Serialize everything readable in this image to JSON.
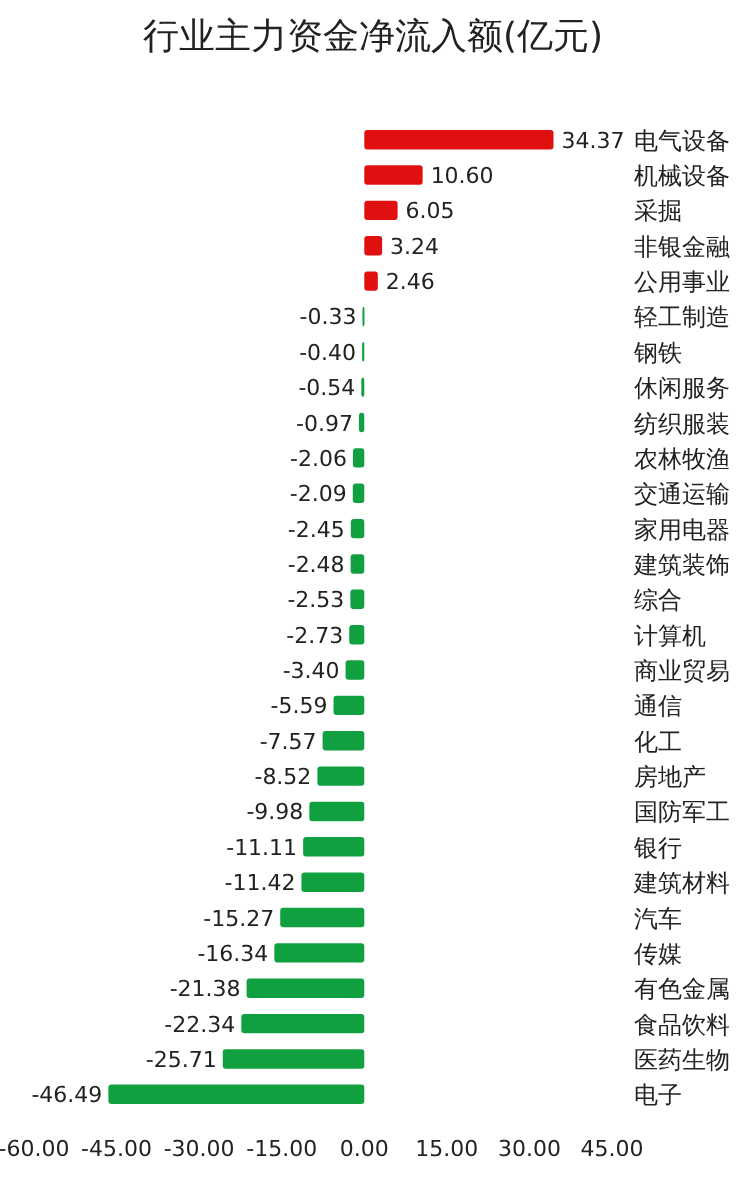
{
  "chart_data": {
    "type": "bar",
    "orientation": "horizontal",
    "title": "行业主力资金净流入额(亿元)",
    "categories": [
      "电气设备",
      "机械设备",
      "采掘",
      "非银金融",
      "公用事业",
      "轻工制造",
      "钢铁",
      "休闲服务",
      "纺织服装",
      "农林牧渔",
      "交通运输",
      "家用电器",
      "建筑装饰",
      "综合",
      "计算机",
      "商业贸易",
      "通信",
      "化工",
      "房地产",
      "国防军工",
      "银行",
      "建筑材料",
      "汽车",
      "传媒",
      "有色金属",
      "食品饮料",
      "医药生物",
      "电子"
    ],
    "values": [
      34.37,
      10.6,
      6.05,
      3.24,
      2.46,
      -0.33,
      -0.4,
      -0.54,
      -0.97,
      -2.06,
      -2.09,
      -2.45,
      -2.48,
      -2.53,
      -2.73,
      -3.4,
      -5.59,
      -7.57,
      -8.52,
      -9.98,
      -11.11,
      -11.42,
      -15.27,
      -16.34,
      -21.38,
      -22.34,
      -25.71,
      -46.49
    ],
    "value_labels": [
      "34.37",
      "10.60",
      "6.05",
      "3.24",
      "2.46",
      "-0.33",
      "-0.40",
      "-0.54",
      "-0.97",
      "-2.06",
      "-2.09",
      "-2.45",
      "-2.48",
      "-2.53",
      "-2.73",
      "-3.40",
      "-5.59",
      "-7.57",
      "-8.52",
      "-9.98",
      "-11.11",
      "-11.42",
      "-15.27",
      "-16.34",
      "-21.38",
      "-22.34",
      "-25.71",
      "-46.49"
    ],
    "colors": [
      "#e01010",
      "#e01010",
      "#e01010",
      "#e01010",
      "#e01010",
      "#10a040",
      "#10a040",
      "#10a040",
      "#10a040",
      "#10a040",
      "#10a040",
      "#10a040",
      "#10a040",
      "#10a040",
      "#10a040",
      "#10a040",
      "#10a040",
      "#10a040",
      "#10a040",
      "#10a040",
      "#10a040",
      "#10a040",
      "#10a040",
      "#10a040",
      "#10a040",
      "#10a040",
      "#10a040",
      "#10a040"
    ],
    "xlim": [
      -60,
      45
    ],
    "xticks": [
      {
        "value": -60,
        "label": "-60.00"
      },
      {
        "value": -45,
        "label": "-45.00"
      },
      {
        "value": -30,
        "label": "-30.00"
      },
      {
        "value": -15,
        "label": "-15.00"
      },
      {
        "value": 0,
        "label": "0.00"
      },
      {
        "value": 15,
        "label": "15.00"
      },
      {
        "value": 30,
        "label": "30.00"
      },
      {
        "value": 45,
        "label": "45.00"
      }
    ],
    "grid": false
  }
}
